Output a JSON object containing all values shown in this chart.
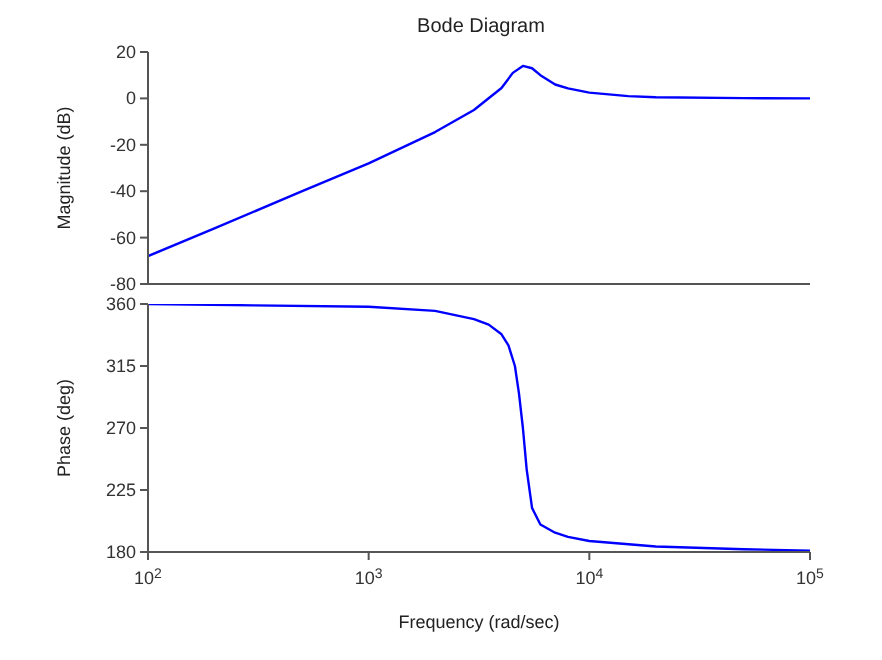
{
  "chart_data": [
    {
      "type": "line",
      "title": "Bode Diagram",
      "ylabel": "Magnitude (dB)",
      "log": "x",
      "grid": false,
      "marker": "none",
      "tick_labels": "y",
      "xlim": [
        100,
        100000
      ],
      "xticks": [
        {
          "value": 100,
          "label": null
        },
        {
          "value": 1000,
          "label": null
        },
        {
          "value": 10000,
          "label": null
        },
        {
          "value": 100000,
          "label": null
        }
      ],
      "ylim": [
        -80,
        20
      ],
      "yticks": [
        -80,
        -60,
        -40,
        -20,
        0,
        20
      ],
      "series": [
        {
          "color": "#0000ff",
          "x": [
            100,
            200,
            500,
            1000,
            2000,
            3000,
            4000,
            4500,
            5000,
            5500,
            6000,
            7000,
            8000,
            10000,
            15000,
            20000,
            50000,
            100000
          ],
          "values": [
            -68,
            -56,
            -40,
            -28,
            -14.5,
            -5,
            4.5,
            11,
            14,
            13,
            10,
            6,
            4.3,
            2.5,
            1,
            0.5,
            0.1,
            0
          ]
        }
      ]
    },
    {
      "type": "line",
      "xlabel": "Frequency  (rad/sec)",
      "ylabel": "Phase (deg)",
      "log": "x",
      "grid": false,
      "marker": "none",
      "xlim": [
        100,
        100000
      ],
      "xticks": [
        {
          "value": 100,
          "label": "10$^{2}$"
        },
        {
          "value": 1000,
          "label": "10$^{3}$"
        },
        {
          "value": 10000,
          "label": "10$^{4}$"
        },
        {
          "value": 100000,
          "label": "10$^{5}$"
        }
      ],
      "ylim": [
        180,
        360
      ],
      "yticks": [
        180,
        225,
        270,
        315,
        360
      ],
      "series": [
        {
          "color": "#0000ff",
          "x": [
            100,
            300,
            1000,
            2000,
            3000,
            3500,
            4000,
            4300,
            4600,
            4800,
            5000,
            5200,
            5500,
            6000,
            7000,
            8000,
            10000,
            20000,
            50000,
            100000
          ],
          "values": [
            360,
            359,
            358,
            355,
            349,
            345,
            338,
            330,
            315,
            295,
            270,
            240,
            212,
            200,
            194,
            191,
            188,
            184,
            182,
            181
          ]
        }
      ]
    }
  ]
}
